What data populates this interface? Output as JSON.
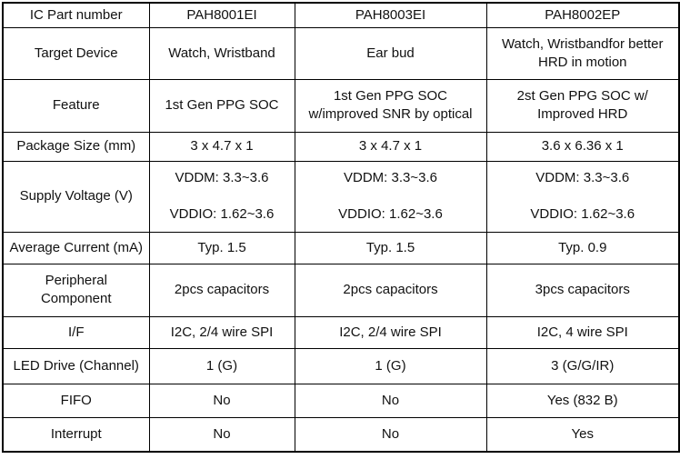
{
  "colors": {
    "border": "#000000",
    "background": "#ffffff",
    "text": "#111111"
  },
  "table": {
    "columns": [
      "IC Part number",
      "PAH8001EI",
      "PAH8003EI",
      "PAH8002EP"
    ],
    "rows": [
      {
        "label": "IC Part number",
        "values": [
          "PAH8001EI",
          "PAH8003EI",
          "PAH8002EP"
        ]
      },
      {
        "label": "Target Device",
        "values": [
          "Watch, Wristband",
          "Ear bud",
          "Watch, Wristbandfor better\nHRD in motion"
        ]
      },
      {
        "label": "Feature",
        "values": [
          "1st Gen PPG SOC",
          "1st Gen PPG SOC\nw/improved SNR by optical",
          "2st Gen PPG SOC  w/\nImproved HRD"
        ]
      },
      {
        "label": "Package Size (mm)",
        "values": [
          "3 x 4.7 x 1",
          "3 x 4.7 x 1",
          "3.6 x 6.36 x 1"
        ]
      },
      {
        "label": "Supply Voltage (V)",
        "values": [
          "VDDM: 3.3~3.6\n\nVDDIO: 1.62~3.6",
          "VDDM: 3.3~3.6\n\nVDDIO: 1.62~3.6",
          "VDDM: 3.3~3.6\n\nVDDIO: 1.62~3.6"
        ]
      },
      {
        "label": "Average Current (mA)",
        "values": [
          "Typ. 1.5",
          "Typ. 1.5",
          "Typ. 0.9"
        ]
      },
      {
        "label": "Peripheral\nComponent",
        "values": [
          "2pcs capacitors",
          "2pcs capacitors",
          "3pcs capacitors"
        ]
      },
      {
        "label": "I/F",
        "values": [
          "I2C, 2/4 wire SPI",
          "I2C, 2/4 wire SPI",
          "I2C, 4 wire SPI"
        ]
      },
      {
        "label": "LED Drive (Channel)",
        "values": [
          "1 (G)",
          "1 (G)",
          "3 (G/G/IR)"
        ]
      },
      {
        "label": "FIFO",
        "values": [
          "No",
          "No",
          "Yes (832 B)"
        ]
      },
      {
        "label": "Interrupt",
        "values": [
          "No",
          "No",
          "Yes"
        ]
      }
    ]
  }
}
